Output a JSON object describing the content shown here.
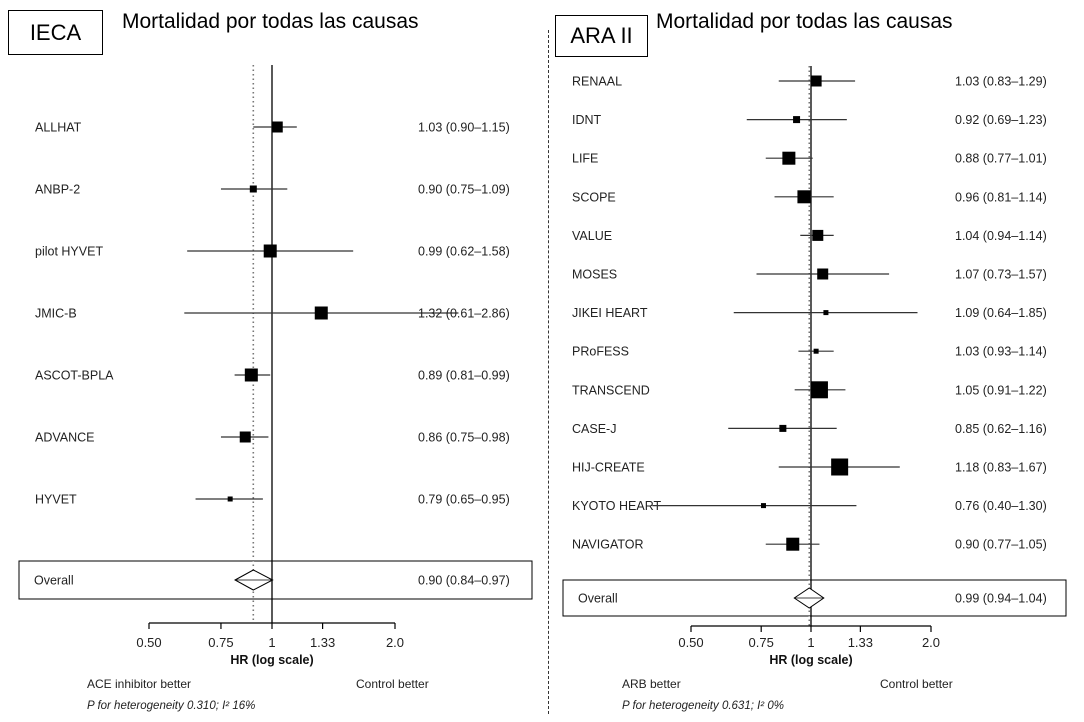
{
  "chart_data": [
    {
      "type": "forest",
      "panel_label": "IECA",
      "title": "Mortalidad por todas las causas",
      "xlabel": "HR (log scale)",
      "xscale": "log",
      "xlim": [
        0.5,
        2.0
      ],
      "ticks": [
        0.5,
        0.75,
        1,
        1.33,
        2.0
      ],
      "tick_labels": [
        "0.50",
        "0.75",
        "1",
        "1.33",
        "2.0"
      ],
      "reference_line": 1,
      "pooled_line": 0.9,
      "studies": [
        {
          "name": "ALLHAT",
          "hr": 1.03,
          "lo": 0.9,
          "hi": 1.15,
          "label": "1.03 (0.90–1.15)",
          "weight": "medium"
        },
        {
          "name": "ANBP-2",
          "hr": 0.9,
          "lo": 0.75,
          "hi": 1.09,
          "label": "0.90 (0.75–1.09)",
          "weight": "small"
        },
        {
          "name": "pilot HYVET",
          "hr": 0.99,
          "lo": 0.62,
          "hi": 1.58,
          "label": "0.99 (0.62–1.58)",
          "weight": "large"
        },
        {
          "name": "JMIC-B",
          "hr": 1.32,
          "lo": 0.61,
          "hi": 2.86,
          "label": "1.32 (0.61–2.86)",
          "weight": "large"
        },
        {
          "name": "ASCOT-BPLA",
          "hr": 0.89,
          "lo": 0.81,
          "hi": 0.99,
          "label": "0.89 (0.81–0.99)",
          "weight": "large"
        },
        {
          "name": "ADVANCE",
          "hr": 0.86,
          "lo": 0.75,
          "hi": 0.98,
          "label": "0.86 (0.75–0.98)",
          "weight": "medium"
        },
        {
          "name": "HYVET",
          "hr": 0.79,
          "lo": 0.65,
          "hi": 0.95,
          "label": "0.79 (0.65–0.95)",
          "weight": "tiny"
        }
      ],
      "overall": {
        "name": "Overall",
        "hr": 0.9,
        "lo": 0.84,
        "hi": 0.97,
        "label": "0.90 (0.84–0.97)"
      },
      "left_note": "ACE inhibitor better",
      "right_note": "Control better",
      "heterogeneity": "P for heterogeneity 0.310; I² 16%"
    },
    {
      "type": "forest",
      "panel_label": "ARA II",
      "title": "Mortalidad por todas las causas",
      "xlabel": "HR (log scale)",
      "xscale": "log",
      "xlim": [
        0.5,
        2.0
      ],
      "ticks": [
        0.5,
        0.75,
        1,
        1.33,
        2.0
      ],
      "tick_labels": [
        "0.50",
        "0.75",
        "1",
        "1.33",
        "2.0"
      ],
      "reference_line": 1,
      "pooled_line": 0.99,
      "studies": [
        {
          "name": "RENAAL",
          "hr": 1.03,
          "lo": 0.83,
          "hi": 1.29,
          "label": "1.03 (0.83–1.29)",
          "weight": "medium"
        },
        {
          "name": "IDNT",
          "hr": 0.92,
          "lo": 0.69,
          "hi": 1.23,
          "label": "0.92 (0.69–1.23)",
          "weight": "small"
        },
        {
          "name": "LIFE",
          "hr": 0.88,
          "lo": 0.77,
          "hi": 1.01,
          "label": "0.88 (0.77–1.01)",
          "weight": "large"
        },
        {
          "name": "SCOPE",
          "hr": 0.96,
          "lo": 0.81,
          "hi": 1.14,
          "label": "0.96 (0.81–1.14)",
          "weight": "large"
        },
        {
          "name": "VALUE",
          "hr": 1.04,
          "lo": 0.94,
          "hi": 1.14,
          "label": "1.04 (0.94–1.14)",
          "weight": "medium"
        },
        {
          "name": "MOSES",
          "hr": 1.07,
          "lo": 0.73,
          "hi": 1.57,
          "label": "1.07 (0.73–1.57)",
          "weight": "medium"
        },
        {
          "name": "JIKEI HEART",
          "hr": 1.09,
          "lo": 0.64,
          "hi": 1.85,
          "label": "1.09 (0.64–1.85)",
          "weight": "tiny"
        },
        {
          "name": "PRoFESS",
          "hr": 1.03,
          "lo": 0.93,
          "hi": 1.14,
          "label": "1.03 (0.93–1.14)",
          "weight": "tiny"
        },
        {
          "name": "TRANSCEND",
          "hr": 1.05,
          "lo": 0.91,
          "hi": 1.22,
          "label": "1.05 (0.91–1.22)",
          "weight": "xlarge"
        },
        {
          "name": "CASE-J",
          "hr": 0.85,
          "lo": 0.62,
          "hi": 1.16,
          "label": "0.85 (0.62–1.16)",
          "weight": "small"
        },
        {
          "name": "HIJ-CREATE",
          "hr": 1.18,
          "lo": 0.83,
          "hi": 1.67,
          "label": "1.18 (0.83–1.67)",
          "weight": "xlarge"
        },
        {
          "name": "KYOTO HEART",
          "hr": 0.76,
          "lo": 0.4,
          "hi": 1.3,
          "label": "0.76 (0.40–1.30)",
          "weight": "tiny"
        },
        {
          "name": "NAVIGATOR",
          "hr": 0.9,
          "lo": 0.77,
          "hi": 1.05,
          "label": "0.90 (0.77–1.05)",
          "weight": "large"
        }
      ],
      "overall": {
        "name": "Overall",
        "hr": 0.99,
        "lo": 0.94,
        "hi": 1.04,
        "label": "0.99 (0.94–1.04)"
      },
      "left_note": "ARB better",
      "right_note": "Control better",
      "heterogeneity": "P for heterogeneity 0.631; I² 0%"
    }
  ]
}
